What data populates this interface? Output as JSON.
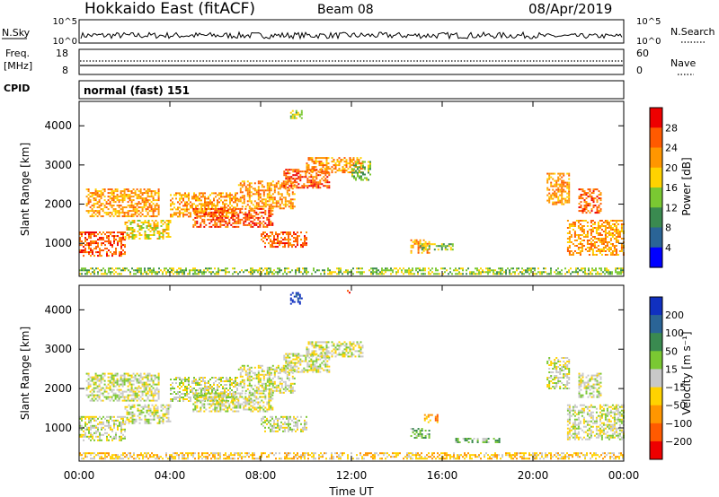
{
  "header": {
    "title": "Hokkaido East (fitACF)",
    "beam": "Beam 08",
    "date": "08/Apr/2019"
  },
  "top_panels": {
    "nsky_label": "N.Sky",
    "nsky_ticks": [
      "10^5",
      "10^0"
    ],
    "nsearch_label": "N.Search",
    "nsearch_ticks": [
      "10^5",
      "10^0"
    ],
    "freq_label_1": "Freq.",
    "freq_label_2": "[MHz]",
    "freq_ticks": [
      "18",
      "8"
    ],
    "nave_label": "Nave",
    "nave_ticks": [
      "60",
      "0"
    ],
    "cpid_label": "CPID",
    "cpid_text": "normal (fast) 151"
  },
  "chart_data": [
    {
      "type": "heatmap",
      "name": "power",
      "ylabel": "Slant Range [km]",
      "ylim": [
        180,
        4600
      ],
      "yticks": [
        "1000",
        "2000",
        "3000",
        "4000"
      ],
      "colorbar_label": "Power [dB]",
      "colorbar_ticks": [
        "4",
        "8",
        "12",
        "16",
        "20",
        "24",
        "28"
      ],
      "colors": [
        "#0000ff",
        "#2a6496",
        "#3a8a50",
        "#7ac832",
        "#ffd200",
        "#ff9600",
        "#ff5a00",
        "#ee0000"
      ],
      "patches": [
        {
          "t0": 0.0,
          "t1": 2.0,
          "r0": 700,
          "r1": 1300,
          "level": 6
        },
        {
          "t0": 0.3,
          "t1": 3.5,
          "r0": 1700,
          "r1": 2400,
          "level": 5
        },
        {
          "t0": 2.0,
          "t1": 4.0,
          "r0": 1100,
          "r1": 1600,
          "level": 4
        },
        {
          "t0": 4.0,
          "t1": 7.0,
          "r0": 1700,
          "r1": 2300,
          "level": 5
        },
        {
          "t0": 5.0,
          "t1": 8.5,
          "r0": 1400,
          "r1": 1900,
          "level": 6
        },
        {
          "t0": 7.0,
          "t1": 9.5,
          "r0": 1900,
          "r1": 2600,
          "level": 5
        },
        {
          "t0": 8.0,
          "t1": 10.0,
          "r0": 900,
          "r1": 1300,
          "level": 6
        },
        {
          "t0": 9.0,
          "t1": 11.0,
          "r0": 2400,
          "r1": 2900,
          "level": 6
        },
        {
          "t0": 10.0,
          "t1": 12.5,
          "r0": 2800,
          "r1": 3200,
          "level": 5
        },
        {
          "t0": 12.0,
          "t1": 12.8,
          "r0": 2600,
          "r1": 3100,
          "level": 3
        },
        {
          "t0": 14.6,
          "t1": 15.4,
          "r0": 750,
          "r1": 1100,
          "level": 5
        },
        {
          "t0": 15.0,
          "t1": 16.5,
          "r0": 850,
          "r1": 1000,
          "level": 3
        },
        {
          "t0": 20.6,
          "t1": 21.6,
          "r0": 2000,
          "r1": 2800,
          "level": 5
        },
        {
          "t0": 21.5,
          "t1": 24.0,
          "r0": 700,
          "r1": 1600,
          "level": 5
        },
        {
          "t0": 22.0,
          "t1": 23.0,
          "r0": 1800,
          "r1": 2400,
          "level": 6
        },
        {
          "t0": 9.3,
          "t1": 9.8,
          "r0": 4200,
          "r1": 4400,
          "level": 3
        },
        {
          "t0": 0.0,
          "t1": 24.0,
          "r0": 200,
          "r1": 380,
          "level": 3
        }
      ]
    },
    {
      "type": "heatmap",
      "name": "velocity",
      "xlabel": "Time UT",
      "xticks": [
        "00:00",
        "04:00",
        "08:00",
        "12:00",
        "16:00",
        "20:00",
        "00:00"
      ],
      "xlim": [
        0,
        24
      ],
      "ylabel": "Slant Range [km]",
      "ylim": [
        180,
        4600
      ],
      "yticks": [
        "1000",
        "2000",
        "3000",
        "4000"
      ],
      "colorbar_label": "Velocity [m s⁻¹]",
      "colorbar_ticks": [
        "200",
        "100",
        "50",
        "15",
        "−15",
        "−50",
        "−100",
        "−200"
      ],
      "colors": [
        "#1030c0",
        "#2a6496",
        "#3a8a50",
        "#7ac832",
        "#c8c8c8",
        "#ffd200",
        "#ff9600",
        "#ff5a00",
        "#ee0000"
      ],
      "patches": [
        {
          "t0": 0.0,
          "t1": 2.0,
          "r0": 700,
          "r1": 1300,
          "level": 4
        },
        {
          "t0": 0.3,
          "t1": 3.5,
          "r0": 1700,
          "r1": 2400,
          "level": 4
        },
        {
          "t0": 2.0,
          "t1": 4.0,
          "r0": 1100,
          "r1": 1600,
          "level": 4
        },
        {
          "t0": 4.0,
          "t1": 7.0,
          "r0": 1700,
          "r1": 2300,
          "level": 4
        },
        {
          "t0": 5.0,
          "t1": 8.5,
          "r0": 1400,
          "r1": 1900,
          "level": 4
        },
        {
          "t0": 7.0,
          "t1": 9.5,
          "r0": 1900,
          "r1": 2600,
          "level": 4
        },
        {
          "t0": 8.0,
          "t1": 10.0,
          "r0": 900,
          "r1": 1300,
          "level": 4
        },
        {
          "t0": 9.0,
          "t1": 11.0,
          "r0": 2400,
          "r1": 2900,
          "level": 4
        },
        {
          "t0": 10.0,
          "t1": 12.5,
          "r0": 2800,
          "r1": 3200,
          "level": 4
        },
        {
          "t0": 14.6,
          "t1": 15.4,
          "r0": 750,
          "r1": 1000,
          "level": 3
        },
        {
          "t0": 15.2,
          "t1": 15.8,
          "r0": 1150,
          "r1": 1350,
          "level": 6
        },
        {
          "t0": 16.5,
          "t1": 18.5,
          "r0": 650,
          "r1": 750,
          "level": 3
        },
        {
          "t0": 20.6,
          "t1": 21.6,
          "r0": 2000,
          "r1": 2800,
          "level": 4
        },
        {
          "t0": 21.5,
          "t1": 24.0,
          "r0": 700,
          "r1": 1600,
          "level": 4
        },
        {
          "t0": 22.0,
          "t1": 23.0,
          "r0": 1800,
          "r1": 2400,
          "level": 4
        },
        {
          "t0": 9.3,
          "t1": 9.8,
          "r0": 4150,
          "r1": 4450,
          "level": 0
        },
        {
          "t0": 11.8,
          "t1": 12.0,
          "r0": 4450,
          "r1": 4550,
          "level": 8
        },
        {
          "t0": 0.0,
          "t1": 24.0,
          "r0": 200,
          "r1": 380,
          "level": 5
        }
      ]
    }
  ]
}
